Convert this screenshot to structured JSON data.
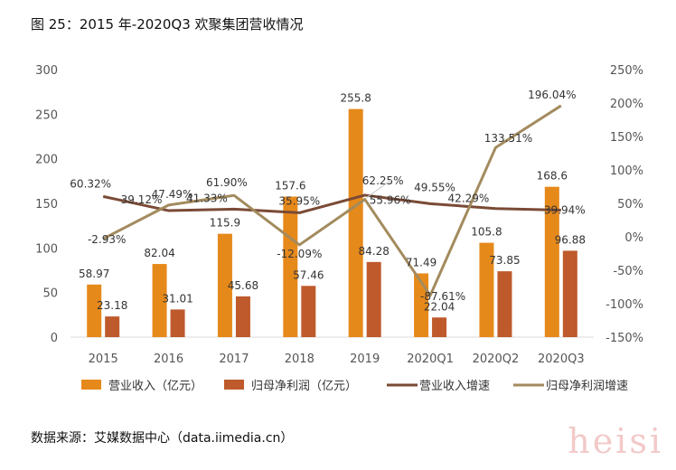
{
  "title": "图 25：2015 年-2020Q3 欢聚集团营收情况",
  "source": "数据来源：艾媒数据中心（data.iimedia.cn）",
  "watermark": "heisi",
  "chart_data": {
    "type": "bar",
    "categories": [
      "2015",
      "2016",
      "2017",
      "2018",
      "2019",
      "2020Q1",
      "2020Q2",
      "2020Q3"
    ],
    "series": [
      {
        "name": "营业收入（亿元）",
        "type": "bar",
        "axis": "left",
        "color": "#E6891B",
        "values": [
          58.97,
          82.04,
          115.9,
          157.6,
          255.8,
          71.49,
          105.8,
          168.6
        ],
        "labels": [
          "58.97",
          "82.04",
          "115.9",
          "157.6",
          "255.8",
          "71.49",
          "105.8",
          "168.6"
        ]
      },
      {
        "name": "归母净利润（亿元）",
        "type": "bar",
        "axis": "left",
        "color": "#BE5A2C",
        "values": [
          23.18,
          31.01,
          45.68,
          57.46,
          84.28,
          22.04,
          73.85,
          96.88
        ],
        "labels": [
          "23.18",
          "31.01",
          "45.68",
          "57.46",
          "84.28",
          "22.04",
          "73.85",
          "96.88"
        ]
      },
      {
        "name": "营业收入增速",
        "type": "line",
        "axis": "right",
        "color": "#7A4A35",
        "values": [
          60.32,
          39.12,
          41.33,
          35.95,
          62.25,
          49.55,
          42.29,
          39.94
        ],
        "labels": [
          "60.32%",
          "39.12%",
          "41.33%",
          "35.95%",
          "62.25%",
          "49.55%",
          "42.29%",
          "39.94%"
        ]
      },
      {
        "name": "归母净利润增速",
        "type": "line",
        "axis": "right",
        "color": "#A38B5E",
        "values": [
          -2.93,
          47.49,
          61.9,
          -12.09,
          55.96,
          -87.61,
          133.51,
          196.04
        ],
        "labels": [
          "-2.93%",
          "47.49%",
          "61.90%",
          "-12.09%",
          "55.96%",
          "-87.61%",
          "133.51%",
          "196.04%"
        ]
      }
    ],
    "y_left": {
      "min": 0,
      "max": 300,
      "ticks": [
        "0",
        "50",
        "100",
        "150",
        "200",
        "250",
        "300"
      ]
    },
    "y_right": {
      "min": -150,
      "max": 250,
      "ticks": [
        "-150%",
        "-100%",
        "-50%",
        "0%",
        "50%",
        "100%",
        "150%",
        "200%",
        "250%"
      ]
    },
    "grid": false,
    "legend_position": "bottom"
  }
}
